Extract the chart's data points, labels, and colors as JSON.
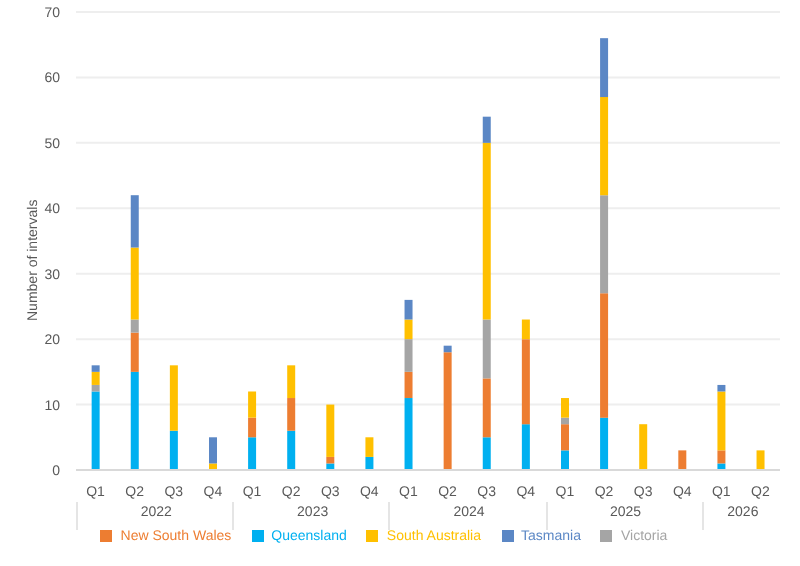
{
  "chart_data": {
    "type": "bar",
    "stacked": true,
    "ylabel": "Number of intervals",
    "categories": [
      "Q1",
      "Q2",
      "Q3",
      "Q4",
      "Q1",
      "Q2",
      "Q3",
      "Q4",
      "Q1",
      "Q2",
      "Q3",
      "Q4",
      "Q1",
      "Q2",
      "Q3",
      "Q4",
      "Q1",
      "Q2"
    ],
    "annotations": [
      "2022",
      "2023",
      "2024",
      "2025",
      "2026"
    ],
    "series": [
      {
        "name": "Queensland",
        "color": "#00b0f0",
        "values": [
          12,
          15,
          6,
          0,
          5,
          6,
          1,
          2,
          11,
          0,
          5,
          7,
          3,
          8,
          0,
          0,
          1,
          0
        ]
      },
      {
        "name": "New South Wales",
        "color": "#ed7d31",
        "values": [
          0,
          6,
          0,
          0,
          3,
          5,
          1,
          0,
          4,
          18,
          9,
          13,
          4,
          19,
          0,
          3,
          2,
          0
        ]
      },
      {
        "name": "Victoria",
        "color": "#a5a5a5",
        "values": [
          1,
          2,
          0,
          0,
          0,
          0,
          0,
          0,
          5,
          0,
          9,
          0,
          1,
          15,
          0,
          0,
          0,
          0
        ]
      },
      {
        "name": "South Australia",
        "color": "#ffc000",
        "values": [
          2,
          11,
          10,
          1,
          4,
          5,
          8,
          3,
          3,
          0,
          27,
          3,
          3,
          15,
          7,
          0,
          9,
          3
        ]
      },
      {
        "name": "Tasmania",
        "color": "#5b87c5",
        "values": [
          1,
          8,
          0,
          4,
          0,
          0,
          0,
          0,
          3,
          1,
          4,
          0,
          0,
          9,
          0,
          0,
          1,
          0
        ]
      }
    ],
    "ylim": [
      0,
      70
    ],
    "yticks": [
      0,
      10,
      20,
      30,
      40,
      50,
      60,
      70
    ],
    "grid": "y",
    "legend": "bottom"
  }
}
